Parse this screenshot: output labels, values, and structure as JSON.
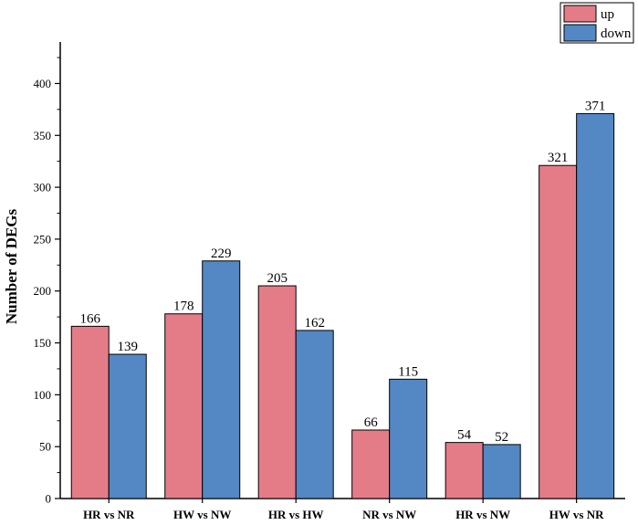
{
  "chart_data": {
    "type": "bar",
    "ylabel": "Number of DEGs",
    "xlabel": "",
    "ylim": [
      0,
      440
    ],
    "yticks": [
      0,
      50,
      100,
      150,
      200,
      250,
      300,
      350,
      400
    ],
    "categories": [
      "HR vs NR",
      "HW vs NW",
      "HR vs HW",
      "NR vs NW",
      "HR vs NW",
      "HW vs NR"
    ],
    "series": [
      {
        "name": "up",
        "color": "#e47c88",
        "values": [
          166,
          178,
          205,
          66,
          54,
          321
        ]
      },
      {
        "name": "down",
        "color": "#5388c4",
        "values": [
          139,
          229,
          162,
          115,
          52,
          371
        ]
      }
    ],
    "legend": "top-right",
    "grid": false
  }
}
